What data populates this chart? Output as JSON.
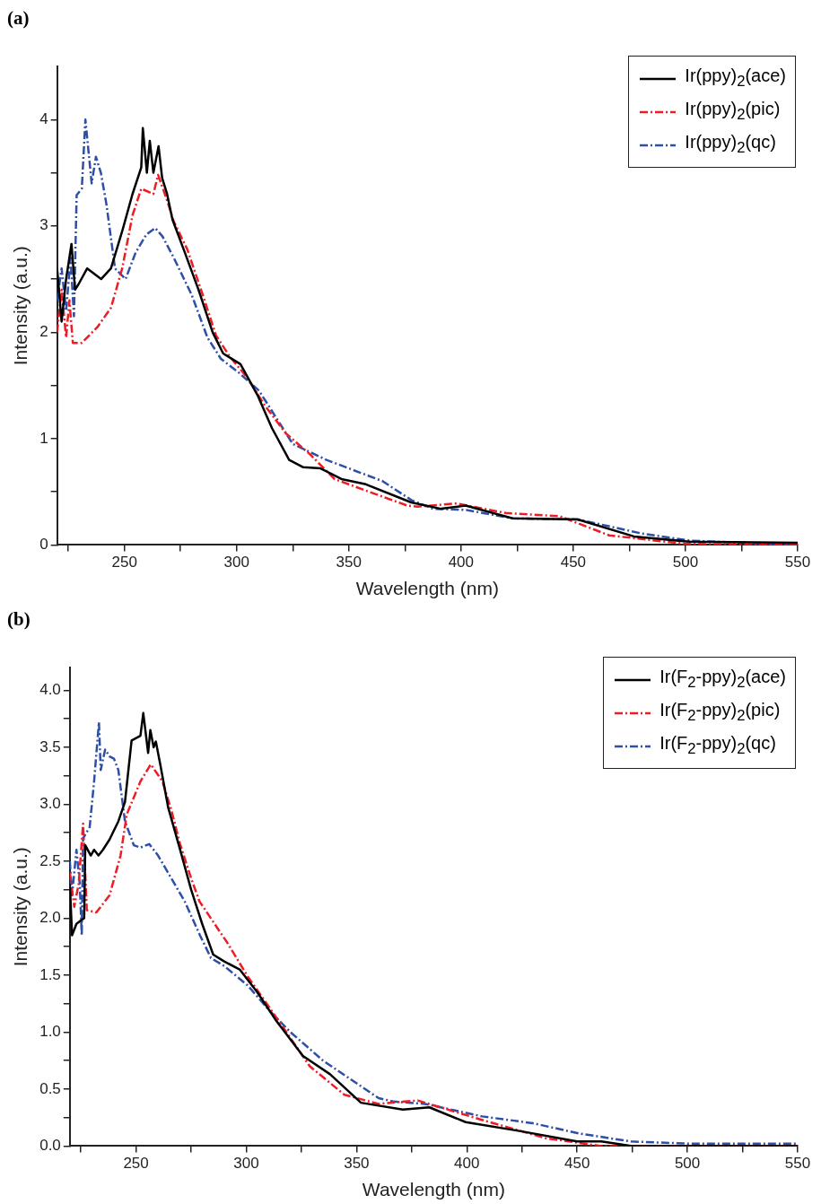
{
  "chart_data": [
    {
      "type": "line",
      "annotations": [
        "(a)"
      ],
      "xlabel": "Wavelength (nm)",
      "ylabel": "Intensity (a.u.)",
      "xlim": [
        220,
        550
      ],
      "ylim": [
        0,
        4.5
      ],
      "xticks": [
        {
          "value": 225,
          "label": null
        },
        250,
        {
          "value": 275,
          "label": null
        },
        300,
        {
          "value": 325,
          "label": null
        },
        350,
        {
          "value": 375,
          "label": null
        },
        400,
        {
          "value": 425,
          "label": null
        },
        450,
        {
          "value": 475,
          "label": null
        },
        500,
        {
          "value": 525,
          "label": null
        },
        550
      ],
      "yticks": [
        0,
        {
          "value": 0.5,
          "label": null
        },
        1,
        {
          "value": 1.5,
          "label": null
        },
        2,
        {
          "value": 2.5,
          "label": null
        },
        3,
        {
          "value": 3.5,
          "label": null
        },
        4
      ],
      "legend": "top right",
      "grid": false,
      "series": [
        {
          "name": "Ir(ppy)$_{2}$(ace)",
          "color": "#000000",
          "line_style": "solid",
          "x": [
            220,
            222,
            224,
            226.4,
            228,
            229.5,
            233.4,
            239.6,
            244,
            249,
            253.6,
            257.5,
            258.2,
            260,
            261.3,
            262.9,
            265.2,
            266.8,
            269,
            271.4,
            276.9,
            283,
            289.3,
            294,
            301.7,
            309.5,
            315.7,
            323.4,
            329.7,
            337.4,
            346.7,
            357.6,
            377.8,
            391,
            402,
            423,
            452,
            477,
            502,
            550
          ],
          "values": [
            2.6,
            2.1,
            2.5,
            2.83,
            2.4,
            2.45,
            2.6,
            2.5,
            2.6,
            2.95,
            3.3,
            3.55,
            3.92,
            3.5,
            3.8,
            3.5,
            3.75,
            3.45,
            3.3,
            3.06,
            2.75,
            2.4,
            2.0,
            1.8,
            1.7,
            1.4,
            1.1,
            0.8,
            0.73,
            0.72,
            0.62,
            0.57,
            0.4,
            0.34,
            0.37,
            0.25,
            0.24,
            0.08,
            0.03,
            0.02
          ]
        },
        {
          "name": "Ir(ppy)$_{2}$(pic)",
          "color": "#ee1c25",
          "line_style": "dashed",
          "x": [
            220,
            222,
            224,
            225.5,
            227,
            231,
            238,
            244,
            249,
            253.6,
            257.5,
            262.9,
            265,
            269,
            272,
            278,
            284.6,
            290.8,
            297,
            304.8,
            312.6,
            321.9,
            332.8,
            343.6,
            359,
            376,
            380.6,
            398,
            420,
            444,
            466,
            500,
            550
          ],
          "values": [
            2.0,
            2.4,
            1.95,
            2.3,
            1.9,
            1.9,
            2.05,
            2.23,
            2.6,
            3.1,
            3.35,
            3.3,
            3.48,
            3.24,
            3.04,
            2.78,
            2.37,
            1.97,
            1.77,
            1.57,
            1.31,
            1.05,
            0.85,
            0.62,
            0.5,
            0.37,
            0.36,
            0.39,
            0.3,
            0.27,
            0.09,
            0.01,
            0.0
          ]
        },
        {
          "name": "Ir(ppy)$_{2}$(qc)",
          "color": "#2e4fa8",
          "line_style": "dashed",
          "x": [
            220,
            222,
            224,
            226,
            227.5,
            228.7,
            231,
            232.6,
            235.4,
            237.3,
            239.5,
            242,
            245.8,
            250.5,
            255,
            259.8,
            263.7,
            267,
            272,
            280,
            287,
            293,
            301,
            310,
            316,
            325,
            340,
            355,
            365,
            378,
            387.5,
            402,
            423,
            452,
            480,
            502,
            550
          ],
          "values": [
            2.3,
            2.6,
            2.2,
            2.7,
            2.15,
            3.29,
            3.35,
            4.0,
            3.4,
            3.65,
            3.5,
            3.2,
            2.6,
            2.5,
            2.75,
            2.92,
            2.98,
            2.9,
            2.7,
            2.35,
            1.95,
            1.75,
            1.62,
            1.45,
            1.25,
            0.95,
            0.8,
            0.68,
            0.6,
            0.42,
            0.34,
            0.33,
            0.25,
            0.24,
            0.11,
            0.04,
            0.0
          ]
        }
      ]
    },
    {
      "type": "line",
      "annotations": [
        "(b)"
      ],
      "xlabel": "Wavelength (nm)",
      "ylabel": "Intensity (a.u.)",
      "xlim": [
        220,
        550
      ],
      "ylim": [
        0,
        4.2
      ],
      "xticks": [
        {
          "value": 225,
          "label": null
        },
        250,
        {
          "value": 275,
          "label": null
        },
        300,
        {
          "value": 325,
          "label": null
        },
        350,
        {
          "value": 375,
          "label": null
        },
        400,
        {
          "value": 425,
          "label": null
        },
        450,
        {
          "value": 475,
          "label": null
        },
        500,
        {
          "value": 525,
          "label": null
        },
        550
      ],
      "yticks": [
        {
          "value": 0,
          "label": "0.0"
        },
        {
          "value": 0.25,
          "label": null
        },
        {
          "value": 0.5,
          "label": "0.5"
        },
        {
          "value": 0.75,
          "label": null
        },
        {
          "value": 1,
          "label": "1.0"
        },
        {
          "value": 1.25,
          "label": null
        },
        {
          "value": 1.5,
          "label": "1.5"
        },
        {
          "value": 1.75,
          "label": null
        },
        {
          "value": 2,
          "label": "2.0"
        },
        {
          "value": 2.25,
          "label": null
        },
        {
          "value": 2.5,
          "label": "2.5"
        },
        {
          "value": 2.75,
          "label": null
        },
        {
          "value": 3,
          "label": "3.0"
        },
        {
          "value": 3.25,
          "label": null
        },
        {
          "value": 3.5,
          "label": "3.5"
        },
        {
          "value": 3.75,
          "label": null
        },
        {
          "value": 4,
          "label": "4.0"
        }
      ],
      "legend": "top right",
      "grid": false,
      "series": [
        {
          "name": "Ir(F$_{2}$-ppy)$_{2}$(ace)",
          "color": "#000000",
          "line_style": "solid",
          "x": [
            220,
            221,
            223,
            225,
            226.5,
            227,
            229.5,
            231,
            233,
            235,
            238,
            242,
            245,
            248,
            252,
            253.3,
            255.5,
            256.5,
            258,
            259,
            261,
            264.6,
            270,
            275,
            280,
            285,
            290,
            297,
            305,
            313.2,
            325.7,
            338,
            352,
            371,
            383,
            399.5,
            424.5,
            450,
            461,
            475,
            550
          ],
          "values": [
            2.3,
            1.85,
            1.95,
            1.98,
            2.0,
            2.64,
            2.55,
            2.6,
            2.55,
            2.6,
            2.69,
            2.85,
            3.02,
            3.56,
            3.6,
            3.8,
            3.45,
            3.65,
            3.5,
            3.55,
            3.35,
            2.97,
            2.6,
            2.25,
            1.95,
            1.68,
            1.62,
            1.55,
            1.35,
            1.11,
            0.79,
            0.63,
            0.38,
            0.32,
            0.34,
            0.21,
            0.13,
            0.04,
            0.04,
            0.0,
            0.0
          ]
        },
        {
          "name": "Ir(F$_{2}$-ppy)$_{2}$(pic)",
          "color": "#ee1c25",
          "line_style": "dashed",
          "x": [
            220,
            222,
            224,
            226,
            227.7,
            232,
            238,
            243,
            245.8,
            252,
            256.7,
            262,
            266,
            270,
            275,
            278.7,
            291.2,
            300.6,
            313.2,
            328.8,
            344.5,
            360,
            377.7,
            406.8,
            435.5,
            461,
            550
          ],
          "values": [
            2.4,
            2.1,
            2.3,
            2.83,
            2.07,
            2.05,
            2.2,
            2.55,
            2.91,
            3.2,
            3.35,
            3.2,
            2.95,
            2.65,
            2.35,
            2.15,
            1.79,
            1.49,
            1.14,
            0.7,
            0.45,
            0.37,
            0.4,
            0.23,
            0.07,
            0.0,
            0.0
          ]
        },
        {
          "name": "Ir(F$_{2}$-ppy)$_{2}$(qc)",
          "color": "#2e4fa8",
          "line_style": "dashed",
          "x": [
            220,
            221,
            223,
            224.5,
            225.4,
            226,
            229,
            230,
            231,
            233.2,
            234,
            236,
            238,
            240,
            242,
            245,
            249,
            252,
            256,
            260,
            266,
            272,
            279,
            284,
            290,
            300.6,
            310,
            320,
            334.8,
            360,
            367,
            381,
            407,
            430,
            451,
            474.5,
            502,
            550
          ],
          "values": [
            2.5,
            2.2,
            2.6,
            2.3,
            1.85,
            2.7,
            2.8,
            3.0,
            3.2,
            3.72,
            3.3,
            3.48,
            3.42,
            3.4,
            3.3,
            2.85,
            2.64,
            2.62,
            2.65,
            2.55,
            2.35,
            2.15,
            1.85,
            1.65,
            1.58,
            1.41,
            1.2,
            1.0,
            0.75,
            0.42,
            0.39,
            0.37,
            0.26,
            0.2,
            0.11,
            0.04,
            0.02,
            0.02
          ]
        }
      ]
    }
  ]
}
